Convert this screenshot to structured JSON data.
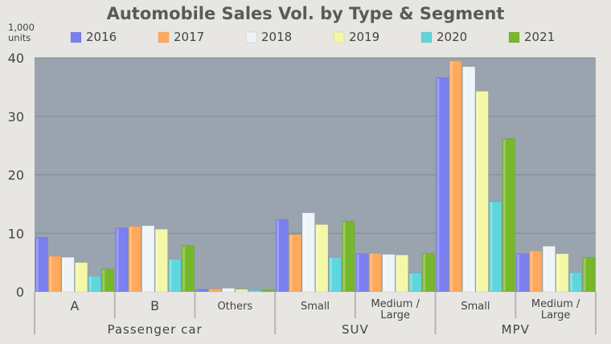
{
  "chart_data": {
    "type": "bar",
    "title": "Automobile Sales Vol. by Type & Segment",
    "unit_label": "1,000\nunits",
    "ylim": [
      0,
      40
    ],
    "yticks": [
      0,
      10,
      20,
      30,
      40
    ],
    "grid": true,
    "legend_position": "top",
    "series": [
      {
        "name": "2016",
        "color": "#7b7ff0",
        "values": [
          9.3,
          10.9,
          0.4,
          12.4,
          6.5,
          36.6,
          6.5
        ]
      },
      {
        "name": "2017",
        "color": "#ffa95c",
        "values": [
          6.1,
          11.2,
          0.5,
          9.8,
          6.6,
          39.5,
          7.0
        ]
      },
      {
        "name": "2018",
        "color": "#eef4f7",
        "values": [
          5.9,
          11.3,
          0.6,
          13.5,
          6.4,
          38.5,
          7.8
        ]
      },
      {
        "name": "2019",
        "color": "#f4f7a6",
        "values": [
          5.0,
          10.7,
          0.4,
          11.5,
          6.3,
          34.3,
          6.5
        ]
      },
      {
        "name": "2020",
        "color": "#5fd6dd",
        "values": [
          2.7,
          5.6,
          0.3,
          5.9,
          3.2,
          15.4,
          3.3
        ]
      },
      {
        "name": "2021",
        "color": "#77b82a",
        "values": [
          3.9,
          7.9,
          0.3,
          12.1,
          6.6,
          26.2,
          5.9
        ]
      }
    ],
    "categories": [
      "A",
      "B",
      "Others",
      "Small",
      "Medium / Large",
      "Small",
      "Medium / Large"
    ],
    "groups": [
      {
        "label": "Passenger car",
        "span": 3
      },
      {
        "label": "SUV",
        "span": 2
      },
      {
        "label": "MPV",
        "span": 2
      }
    ]
  },
  "colors": {
    "background": "#e8e6e3",
    "plot_area": "#9aa4ae",
    "title_text": "#5a5a5a",
    "axis_text": "#444444"
  }
}
